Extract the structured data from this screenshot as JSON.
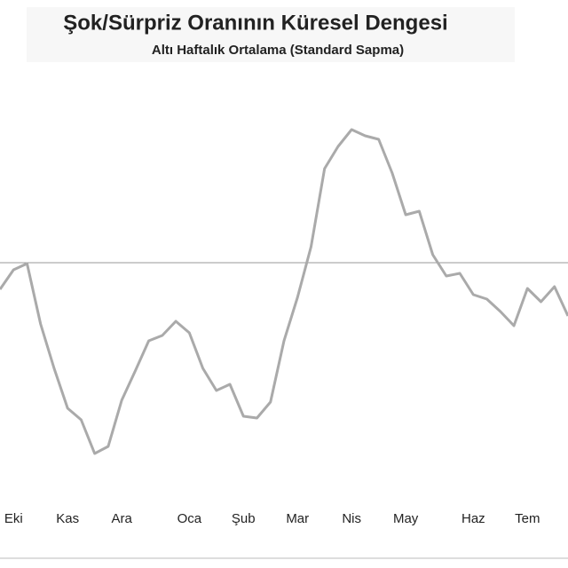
{
  "chart_data": {
    "type": "line",
    "title": "Şok/Sürpriz Oranının Küresel Dengesi",
    "subtitle": "Altı Haftalık Ortalama (Standard Sapma)",
    "categories": [
      null,
      "Eki",
      null,
      null,
      null,
      "Kas",
      null,
      null,
      null,
      "Ara",
      null,
      null,
      null,
      null,
      "Oca",
      null,
      null,
      null,
      "Şub",
      null,
      null,
      null,
      "Mar",
      null,
      null,
      null,
      "Nis",
      null,
      null,
      null,
      "May",
      null,
      null,
      null,
      null,
      "Haz",
      null,
      null,
      null,
      "Tem",
      null,
      null,
      null
    ],
    "series": [
      {
        "color": "#aaaaaa",
        "values": [
          -0.3,
          -0.08,
          -0.01,
          -0.69,
          -1.19,
          -1.64,
          -1.77,
          -2.15,
          -2.07,
          -1.55,
          -1.22,
          -0.88,
          -0.82,
          -0.66,
          -0.79,
          -1.19,
          -1.44,
          -1.37,
          -1.73,
          -1.75,
          -1.57,
          -0.88,
          -0.39,
          0.18,
          1.06,
          1.31,
          1.5,
          1.43,
          1.39,
          1.01,
          0.54,
          0.58,
          0.09,
          -0.15,
          -0.12,
          -0.36,
          -0.41,
          -0.55,
          -0.71,
          -0.29,
          -0.44,
          -0.27,
          -0.6
        ]
      }
    ],
    "ylim": [
      -2.5,
      2.0
    ],
    "yticks": [
      0
    ],
    "grid": true
  }
}
